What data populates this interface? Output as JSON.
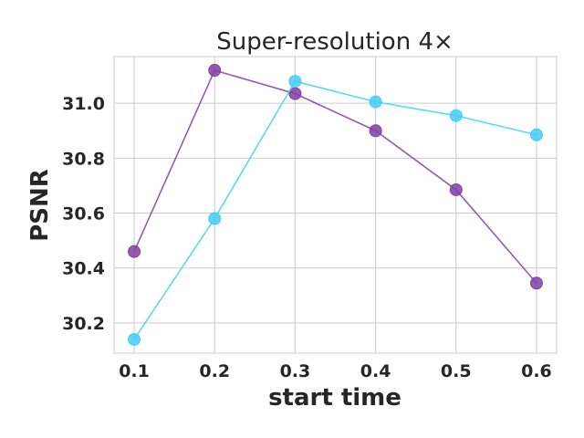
{
  "chart_data": {
    "type": "line",
    "title": "Super-resolution 4×",
    "xlabel": "start time",
    "ylabel": "PSNR",
    "x": [
      0.1,
      0.2,
      0.3,
      0.4,
      0.5,
      0.6
    ],
    "x_ticks": [
      "0.1",
      "0.2",
      "0.3",
      "0.4",
      "0.5",
      "0.6"
    ],
    "y_ticks": [
      "30.2",
      "30.4",
      "30.6",
      "30.8",
      "31.0"
    ],
    "y_tick_values": [
      30.2,
      30.4,
      30.6,
      30.8,
      31.0
    ],
    "xlim": [
      0.075,
      0.625
    ],
    "ylim": [
      30.09,
      31.17
    ],
    "grid": true,
    "series": [
      {
        "values": [
          30.46,
          31.12,
          31.035,
          30.9,
          30.685,
          30.345
        ],
        "color": "#7e3fa2"
      },
      {
        "values": [
          30.14,
          30.58,
          31.08,
          31.005,
          30.955,
          30.885
        ],
        "color": "#45cdf5"
      }
    ]
  }
}
